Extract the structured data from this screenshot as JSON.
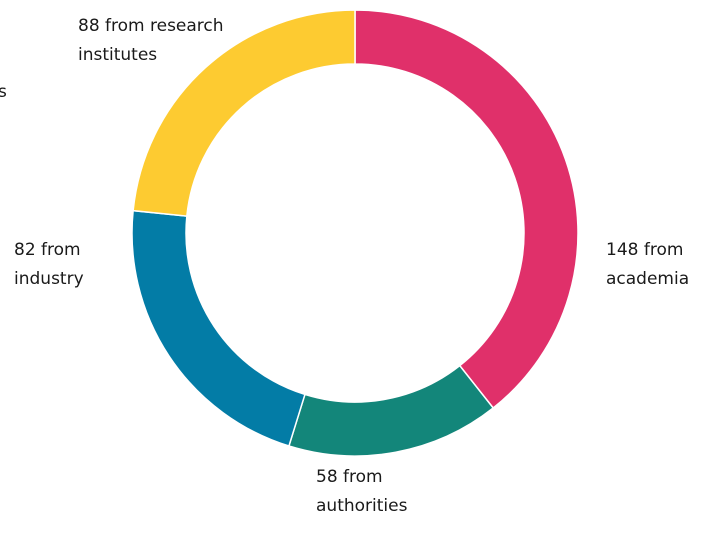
{
  "chart_data": {
    "type": "pie",
    "variant": "donut",
    "start_angle_deg": 0,
    "direction": "clockwise",
    "slices": [
      {
        "category": "academia",
        "value": 148,
        "label_lines": [
          "148 from",
          "academia"
        ],
        "color": "#e0306a"
      },
      {
        "category": "authorities",
        "value": 58,
        "label_lines": [
          "58 from",
          "authorities"
        ],
        "color": "#13867a"
      },
      {
        "category": "industry",
        "value": 82,
        "label_lines": [
          "82 from",
          "industry"
        ],
        "color": "#037ca6"
      },
      {
        "category": "research institutes",
        "value": 88,
        "label_lines": [
          "88 from research",
          "institutes"
        ],
        "color": "#fdcb31"
      }
    ],
    "edge_mark": "s",
    "legend": "none",
    "grid": false
  }
}
